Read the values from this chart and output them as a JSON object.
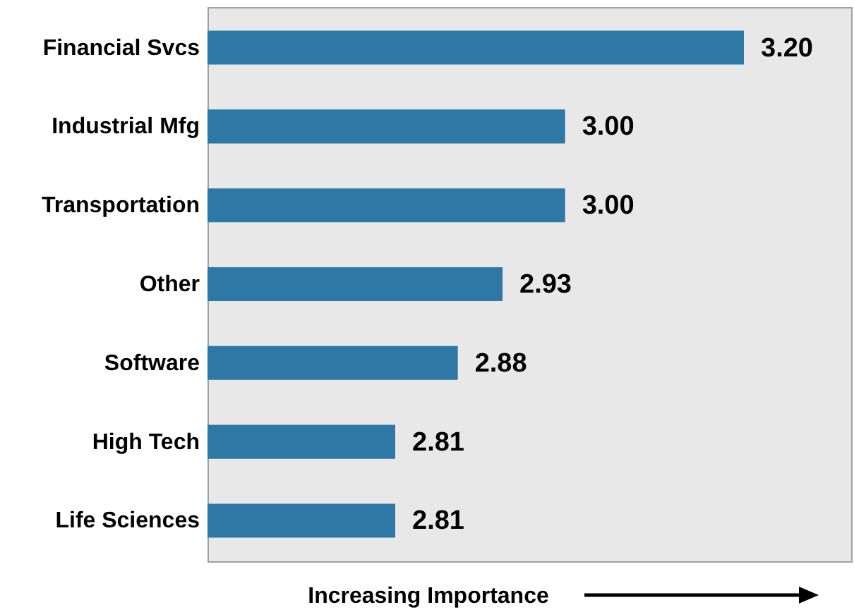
{
  "chart_data": {
    "type": "bar",
    "orientation": "horizontal",
    "xlabel": "Increasing Importance",
    "categories": [
      "Financial Svcs",
      "Industrial Mfg",
      "Transportation",
      "Other",
      "Software",
      "High Tech",
      "Life Sciences"
    ],
    "values": [
      3.2,
      3.0,
      3.0,
      2.93,
      2.88,
      2.81,
      2.81
    ],
    "value_labels": [
      "3.20",
      "3.00",
      "3.00",
      "2.93",
      "2.88",
      "2.81",
      "2.81"
    ],
    "color": "#2e78a6",
    "xlim": [
      2.6,
      3.32
    ]
  }
}
